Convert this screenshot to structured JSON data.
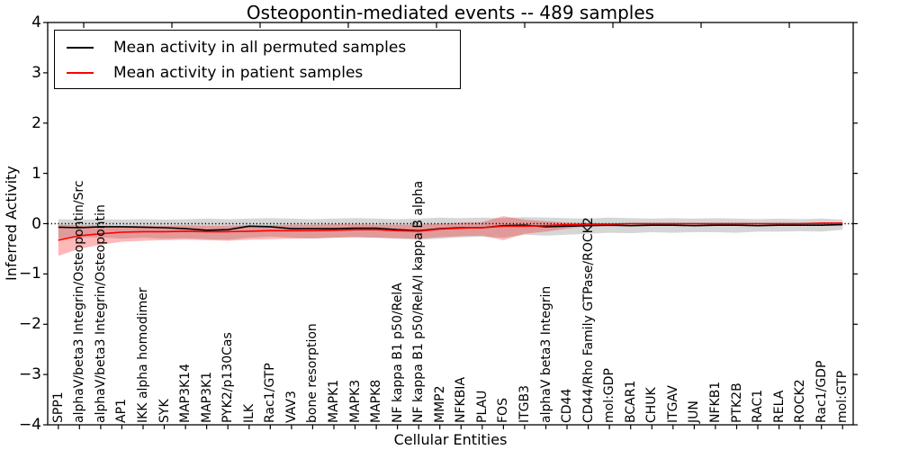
{
  "title": "Osteopontin-mediated events -- 489 samples",
  "legend": {
    "items": [
      {
        "label": "Mean activity in all permuted samples",
        "color": "#000000"
      },
      {
        "label": "Mean activity in patient samples",
        "color": "#ff0000"
      }
    ]
  },
  "colors": {
    "permuted_line": "#000000",
    "patient_line": "#ff0000",
    "permuted_band": "rgba(0,0,0,0.16)",
    "patient_band": "rgba(255,0,0,0.28)",
    "axis": "#000000"
  },
  "chart_data": {
    "type": "line",
    "title": "Osteopontin-mediated events -- 489 samples",
    "xlabel": "Cellular Entities",
    "ylabel": "Inferred Activity",
    "ylim": [
      -4,
      4
    ],
    "yticks": [
      4,
      3,
      2,
      1,
      0,
      -1,
      -2,
      -3,
      -4
    ],
    "ytick_labels": [
      "4",
      "3",
      "2",
      "1",
      "0",
      "−1",
      "−2",
      "−3",
      "−4"
    ],
    "grid": false,
    "legend_position": "upper left",
    "zero_line_style": "dotted",
    "categories": [
      "SPP1",
      "alphaV/beta3 Integrin/Osteopontin/Src",
      "alphaV/beta3 Integrin/Osteopontin",
      "AP1",
      "IKK alpha homodimer",
      "SYK",
      "MAP3K14",
      "MAP3K1",
      "PYK2/p130Cas",
      "ILK",
      "Rac1/GTP",
      "VAV3",
      "bone resorption",
      "MAPK1",
      "MAPK3",
      "MAPK8",
      "NF kappa B1 p50/RelA",
      "NF kappa B1 p50/RelA/I kappa B alpha",
      "MMP2",
      "NFKBIA",
      "PLAU",
      "FOS",
      "ITGB3",
      "alphaV beta3 Integrin",
      "CD44",
      "CD44/Rho Family GTPase/ROCK2",
      "mol:GDP",
      "BCAR1",
      "CHUK",
      "ITGAV",
      "JUN",
      "NFKB1",
      "PTK2B",
      "RAC1",
      "RELA",
      "ROCK2",
      "Rac1/GDP",
      "mol:GTP"
    ],
    "series": [
      {
        "name": "Mean activity in all permuted samples",
        "color": "#000000",
        "values": [
          -0.07,
          -0.08,
          -0.06,
          -0.06,
          -0.07,
          -0.08,
          -0.1,
          -0.13,
          -0.12,
          -0.05,
          -0.06,
          -0.1,
          -0.1,
          -0.1,
          -0.09,
          -0.09,
          -0.12,
          -0.14,
          -0.1,
          -0.08,
          -0.08,
          -0.04,
          -0.03,
          -0.06,
          -0.05,
          -0.04,
          -0.03,
          -0.04,
          -0.03,
          -0.03,
          -0.04,
          -0.03,
          -0.03,
          -0.04,
          -0.03,
          -0.03,
          -0.03,
          -0.02
        ]
      },
      {
        "name": "Mean activity in patient samples",
        "color": "#ff0000",
        "values": [
          -0.33,
          -0.24,
          -0.2,
          -0.17,
          -0.16,
          -0.16,
          -0.15,
          -0.16,
          -0.16,
          -0.15,
          -0.14,
          -0.14,
          -0.14,
          -0.13,
          -0.12,
          -0.12,
          -0.14,
          -0.15,
          -0.11,
          -0.09,
          -0.08,
          -0.05,
          -0.05,
          -0.04,
          -0.02,
          -0.01,
          -0.01,
          0.0,
          0.0,
          0.0,
          0.0,
          0.0,
          0.0,
          0.0,
          0.0,
          0.0,
          0.01,
          0.01
        ]
      }
    ],
    "bands": [
      {
        "name": "permuted-samples-band",
        "color": "rgba(0,0,0,0.16)",
        "upper": [
          0.09,
          0.08,
          0.09,
          0.08,
          0.09,
          0.08,
          0.09,
          0.1,
          0.09,
          0.1,
          0.11,
          0.1,
          0.09,
          0.1,
          0.11,
          0.1,
          0.09,
          0.1,
          0.12,
          0.11,
          0.12,
          0.11,
          0.13,
          0.12,
          0.11,
          0.1,
          0.12,
          0.11,
          0.1,
          0.11,
          0.1,
          0.11,
          0.1,
          0.09,
          0.1,
          0.09,
          0.1,
          0.08
        ],
        "lower": [
          -0.3,
          -0.28,
          -0.27,
          -0.3,
          -0.28,
          -0.3,
          -0.29,
          -0.31,
          -0.32,
          -0.28,
          -0.26,
          -0.28,
          -0.3,
          -0.28,
          -0.27,
          -0.28,
          -0.3,
          -0.32,
          -0.3,
          -0.27,
          -0.26,
          -0.28,
          -0.22,
          -0.24,
          -0.22,
          -0.2,
          -0.18,
          -0.19,
          -0.17,
          -0.18,
          -0.17,
          -0.17,
          -0.18,
          -0.16,
          -0.16,
          -0.15,
          -0.16,
          -0.12
        ]
      },
      {
        "name": "patient-samples-band",
        "color": "rgba(255,0,0,0.28)",
        "upper": [
          -0.02,
          -0.03,
          -0.04,
          -0.05,
          -0.04,
          -0.04,
          -0.03,
          -0.04,
          -0.04,
          -0.03,
          -0.03,
          -0.02,
          -0.02,
          -0.01,
          -0.01,
          -0.02,
          -0.02,
          -0.02,
          0.0,
          0.02,
          0.03,
          0.15,
          0.08,
          0.05,
          0.02,
          0.01,
          0.0,
          0.0,
          0.01,
          0.01,
          0.01,
          0.01,
          0.01,
          0.01,
          0.01,
          0.01,
          0.01,
          0.02
        ],
        "lower": [
          -0.64,
          -0.5,
          -0.42,
          -0.36,
          -0.34,
          -0.33,
          -0.32,
          -0.33,
          -0.34,
          -0.32,
          -0.31,
          -0.3,
          -0.29,
          -0.28,
          -0.27,
          -0.28,
          -0.29,
          -0.3,
          -0.27,
          -0.25,
          -0.24,
          -0.33,
          -0.2,
          -0.16,
          -0.1,
          -0.05,
          -0.02,
          -0.01,
          -0.01,
          -0.01,
          -0.01,
          -0.01,
          -0.01,
          -0.01,
          -0.01,
          -0.01,
          -0.01,
          -0.02
        ]
      }
    ]
  }
}
